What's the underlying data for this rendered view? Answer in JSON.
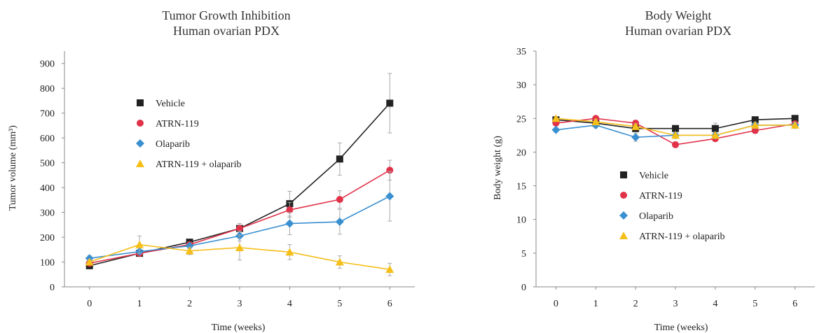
{
  "chart_data": [
    {
      "type": "line",
      "title_lines": [
        "Tumor Growth Inhibition",
        "Human ovarian PDX"
      ],
      "xlabel": "Time (weeks)",
      "ylabel": "Tumor volume (mm³)",
      "x": [
        0,
        1,
        2,
        3,
        4,
        5,
        6
      ],
      "x_ticks": [
        "0",
        "1",
        "2",
        "3",
        "4",
        "5",
        "6"
      ],
      "xlim": [
        -0.5,
        6.5
      ],
      "ylim": [
        0,
        950
      ],
      "y_ticks": [
        "0",
        "100",
        "200",
        "300",
        "400",
        "500",
        "600",
        "700",
        "800",
        "900"
      ],
      "y_tick_values": [
        0,
        100,
        200,
        300,
        400,
        500,
        600,
        700,
        800,
        900
      ],
      "grid": false,
      "legend_position": "center-left",
      "series": [
        {
          "name": "Vehicle",
          "color": "#222222",
          "marker": "square",
          "values": [
            85,
            135,
            180,
            235,
            335,
            515,
            740
          ],
          "errors": [
            10,
            10,
            10,
            20,
            50,
            65,
            120
          ]
        },
        {
          "name": "ATRN-119",
          "color": "#e0334a",
          "marker": "circle",
          "values": [
            95,
            135,
            170,
            235,
            310,
            352,
            470
          ],
          "errors": [
            10,
            10,
            10,
            20,
            30,
            35,
            40
          ]
        },
        {
          "name": "Olaparib",
          "color": "#3a8fd0",
          "marker": "diamond",
          "values": [
            115,
            142,
            165,
            205,
            255,
            262,
            365
          ],
          "errors": [
            10,
            10,
            10,
            20,
            45,
            50,
            100
          ]
        },
        {
          "name": "ATRN-119 + olaparib",
          "color": "#f5bf1a",
          "marker": "triangle",
          "values": [
            100,
            170,
            145,
            158,
            140,
            100,
            70
          ],
          "errors": [
            10,
            35,
            15,
            50,
            30,
            25,
            25
          ]
        }
      ]
    },
    {
      "type": "line",
      "title_lines": [
        "Body Weight",
        "Human ovarian PDX"
      ],
      "xlabel": "Time (weeks)",
      "ylabel": "Body weight (g)",
      "x": [
        0,
        1,
        2,
        3,
        4,
        5,
        6
      ],
      "x_ticks": [
        "0",
        "1",
        "2",
        "3",
        "4",
        "5",
        "6"
      ],
      "xlim": [
        -0.5,
        6.5
      ],
      "ylim": [
        0,
        35
      ],
      "y_ticks": [
        "0",
        "5",
        "10",
        "15",
        "20",
        "25",
        "30",
        "35"
      ],
      "y_tick_values": [
        0,
        5,
        10,
        15,
        20,
        25,
        30,
        35
      ],
      "grid": false,
      "legend_position": "center",
      "series": [
        {
          "name": "Vehicle",
          "color": "#222222",
          "marker": "square",
          "values": [
            24.8,
            24.3,
            23.5,
            23.5,
            23.5,
            24.8,
            25.0
          ],
          "errors": [
            0.3,
            0.4,
            0.5,
            0.4,
            0.8,
            0.4,
            0.3
          ]
        },
        {
          "name": "ATRN-119",
          "color": "#e0334a",
          "marker": "circle",
          "values": [
            24.3,
            25.0,
            24.3,
            21.1,
            22.0,
            23.2,
            24.2
          ],
          "errors": [
            0.3,
            0.3,
            0.4,
            0.4,
            0.4,
            0.4,
            0.3
          ]
        },
        {
          "name": "Olaparib",
          "color": "#3a8fd0",
          "marker": "diamond",
          "values": [
            23.3,
            24.0,
            22.2,
            22.5,
            22.5,
            24.0,
            24.0
          ],
          "errors": [
            0.3,
            0.4,
            0.6,
            0.4,
            0.4,
            0.4,
            0.3
          ]
        },
        {
          "name": "ATRN-119 + olaparib",
          "color": "#f5bf1a",
          "marker": "triangle",
          "values": [
            25.0,
            24.5,
            23.8,
            22.5,
            22.5,
            24.0,
            24.0
          ],
          "errors": [
            0.3,
            0.3,
            0.4,
            0.4,
            0.4,
            0.4,
            0.3
          ]
        }
      ]
    }
  ]
}
